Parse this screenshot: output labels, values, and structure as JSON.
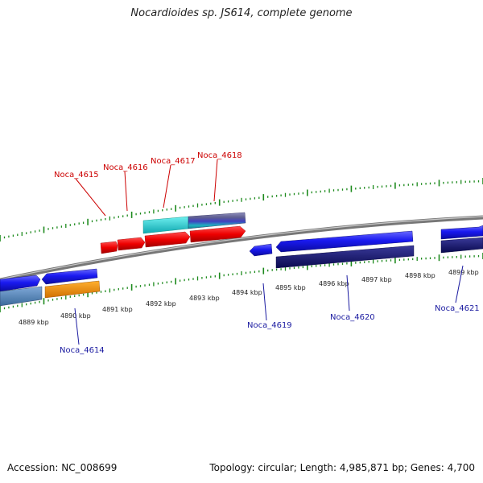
{
  "title": "Nocardioides sp. JS614, complete genome",
  "accession": "Accession: NC_008699",
  "topology": "Topology: circular; Length: 4,985,871 bp; Genes: 4,700",
  "colors": {
    "upper_label": "#cc0000",
    "lower_label": "#1a1aa0",
    "tick": "#1d8a1d",
    "backbone": "#8a8a8a"
  },
  "kbp_ticks": [
    {
      "label": "4889 kbp"
    },
    {
      "label": "4890 kbp"
    },
    {
      "label": "4891 kbp"
    },
    {
      "label": "4892 kbp"
    },
    {
      "label": "4893 kbp"
    },
    {
      "label": "4894 kbp"
    },
    {
      "label": "4895 kbp"
    },
    {
      "label": "4896 kbp"
    },
    {
      "label": "4897 kbp"
    },
    {
      "label": "4898 kbp"
    },
    {
      "label": "4899 kbp"
    }
  ],
  "gene_labels_upper": [
    "Noca_4615",
    "Noca_4616",
    "Noca_4617",
    "Noca_4618"
  ],
  "gene_labels_lower": [
    "Noca_4614",
    "Noca_4619",
    "Noca_4620",
    "Noca_4621"
  ]
}
